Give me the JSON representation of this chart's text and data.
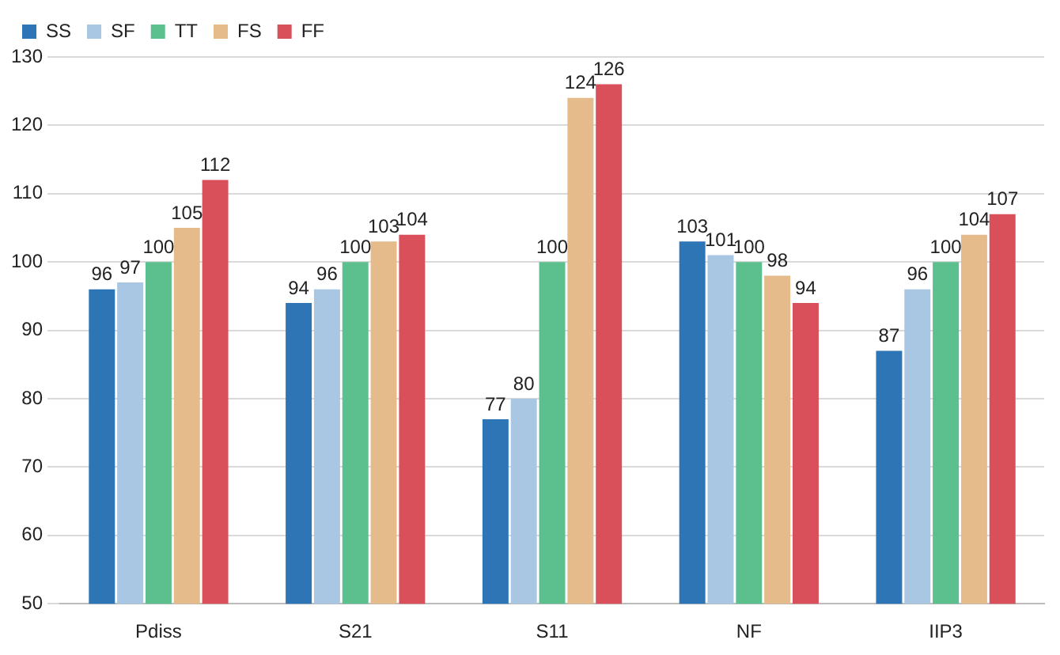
{
  "chart_data": {
    "type": "bar",
    "categories": [
      "Pdiss",
      "S21",
      "S11",
      "NF",
      "IIP3"
    ],
    "series": [
      {
        "name": "SS",
        "color": "#2e75b6",
        "values": [
          96,
          94,
          77,
          103,
          87
        ]
      },
      {
        "name": "SF",
        "color": "#a9c6e3",
        "values": [
          97,
          96,
          80,
          101,
          96
        ]
      },
      {
        "name": "TT",
        "color": "#5cbf8e",
        "values": [
          100,
          100,
          100,
          100,
          100
        ]
      },
      {
        "name": "FS",
        "color": "#e5bb8c",
        "values": [
          105,
          103,
          124,
          98,
          104
        ]
      },
      {
        "name": "FF",
        "color": "#d9505a",
        "values": [
          112,
          104,
          126,
          94,
          107
        ]
      }
    ],
    "ylim": [
      50,
      130
    ],
    "yticks": [
      50,
      60,
      70,
      80,
      90,
      100,
      110,
      120,
      130
    ],
    "grid": "y",
    "legend": "top left",
    "data_labels": true
  }
}
